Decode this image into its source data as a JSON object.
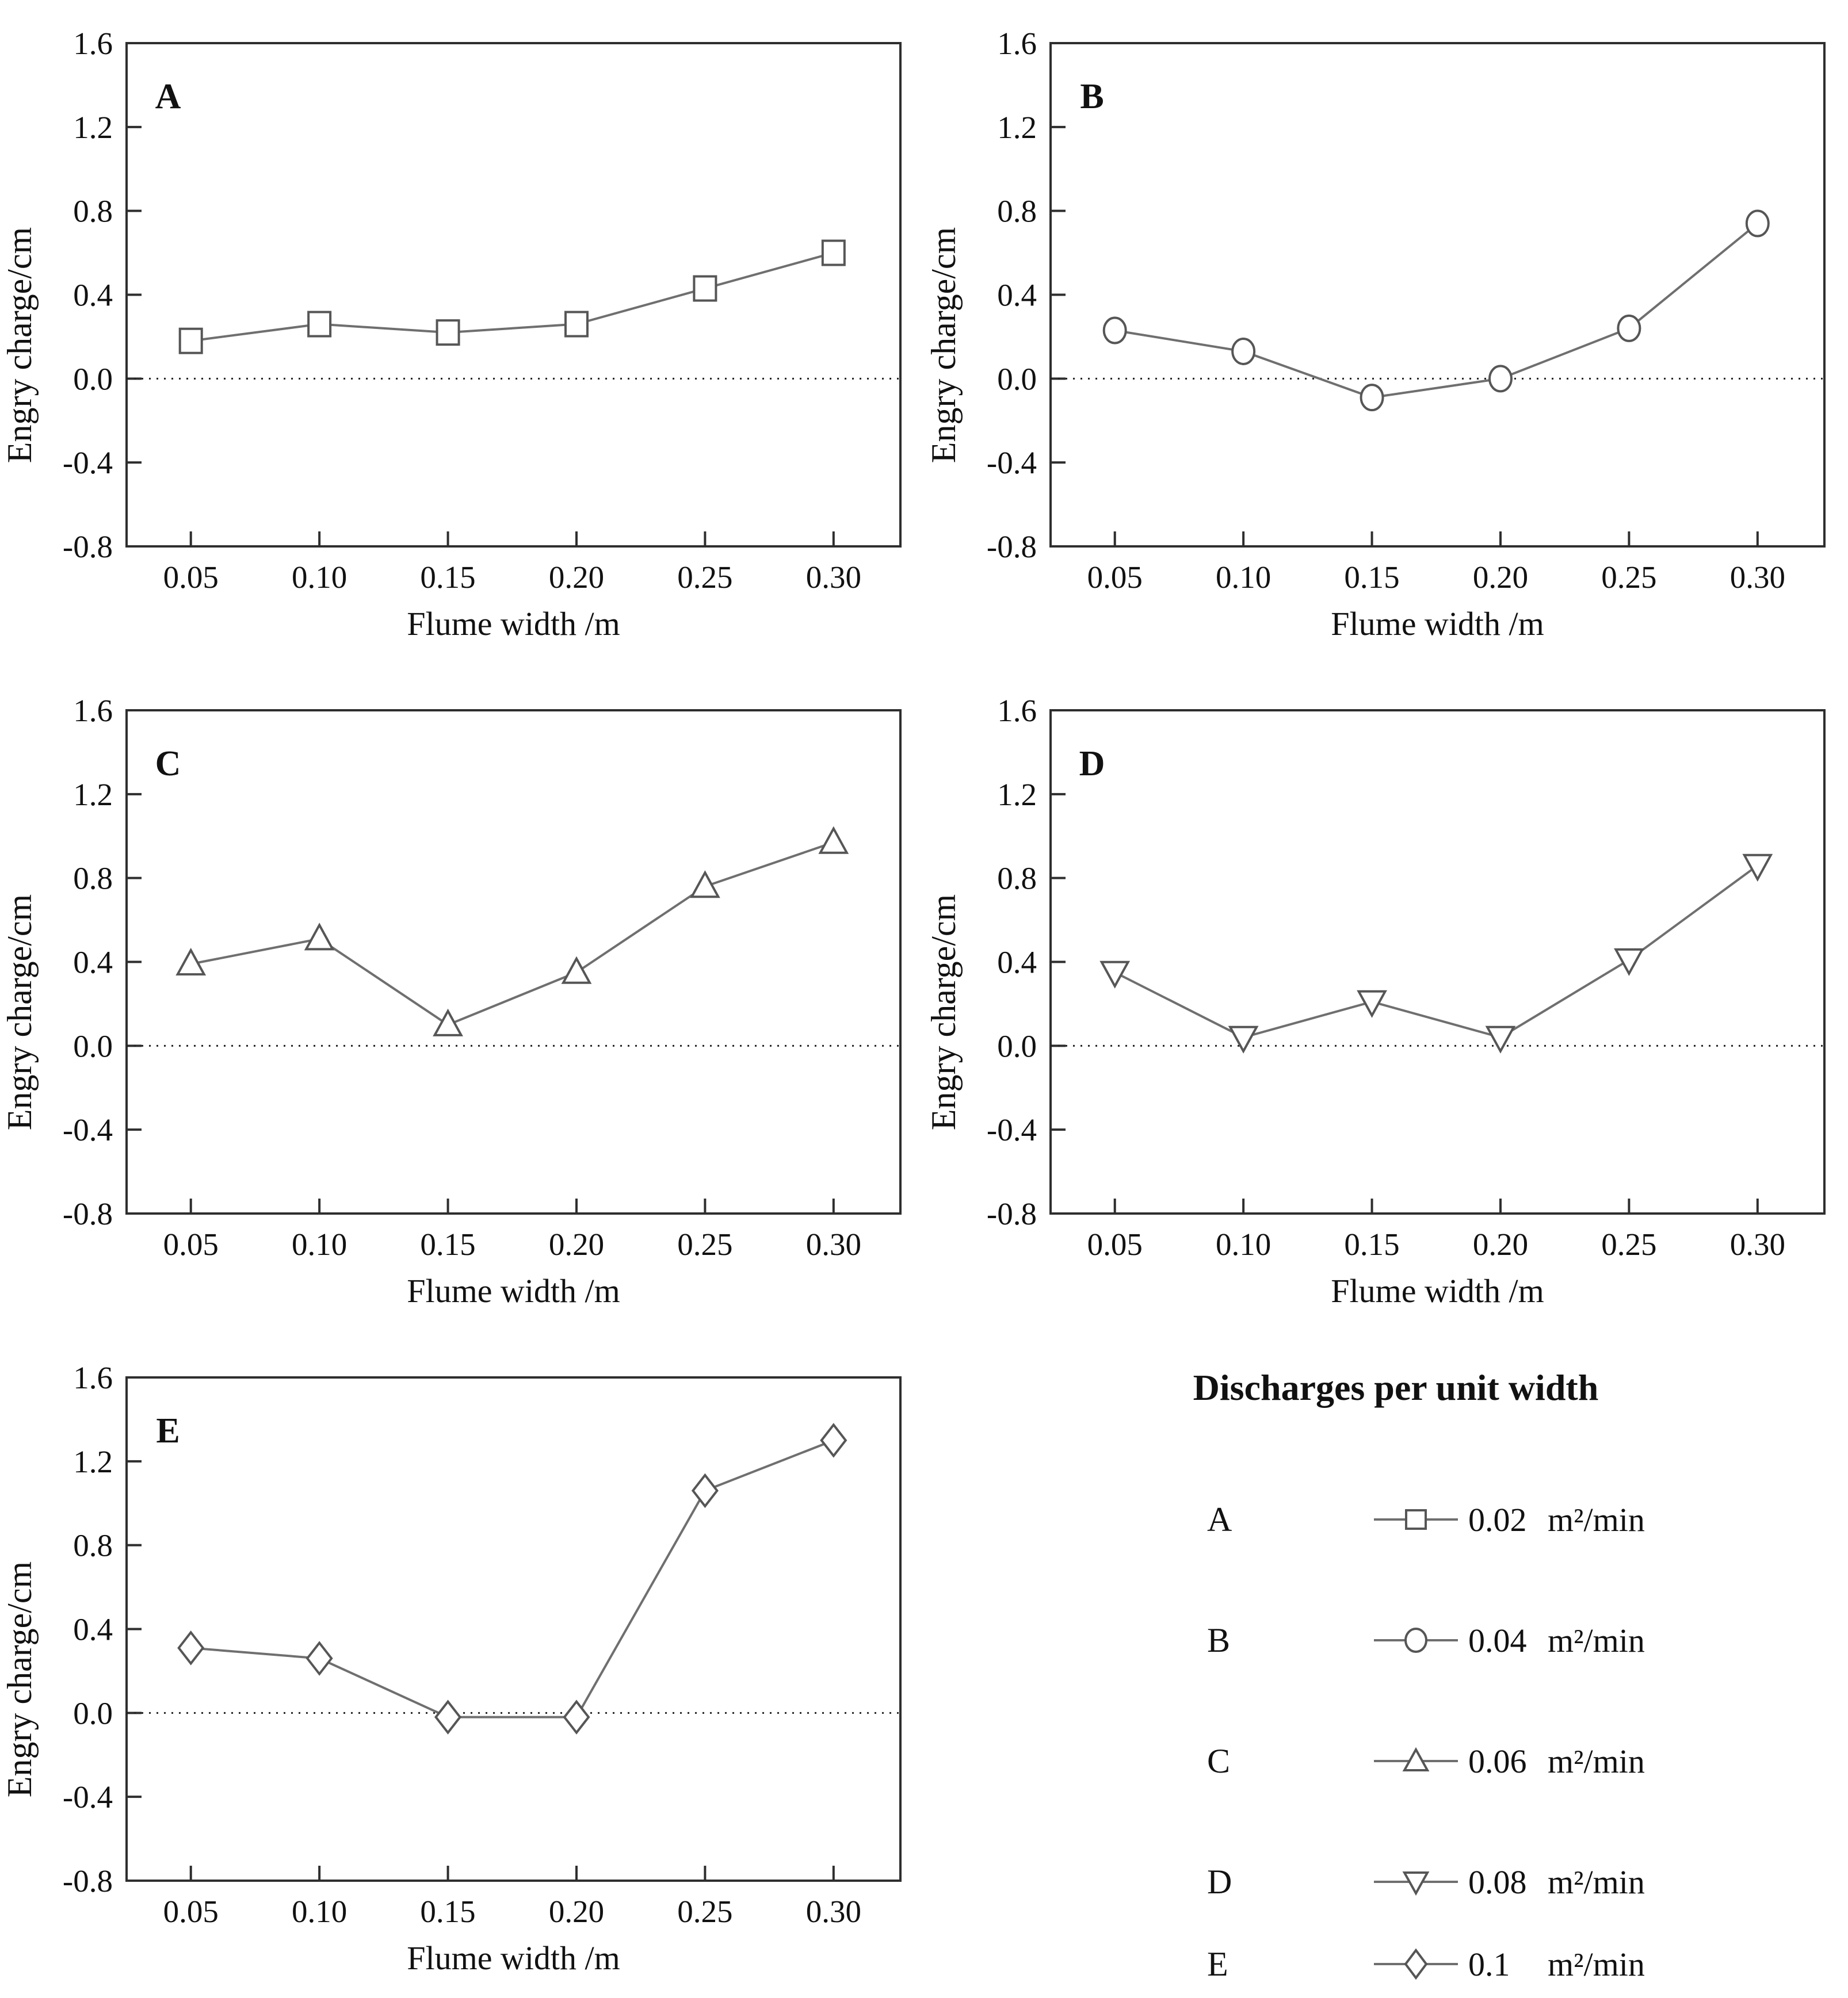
{
  "colors": {
    "background": "#ffffff",
    "axis": "#2e2e2e",
    "line": "#6f6f6f",
    "marker_stroke": "#565656",
    "marker_fill": "#ffffff",
    "zero_line": "#222222",
    "text": "#111111"
  },
  "axes": {
    "xlabel": "Flume width /m",
    "ylabel": "Engry charge/cm",
    "xticks": [
      0.05,
      0.1,
      0.15,
      0.2,
      0.25,
      0.3
    ],
    "xtick_labels": [
      "0.05",
      "0.10",
      "0.15",
      "0.20",
      "0.25",
      "0.30"
    ],
    "yticks": [
      -0.8,
      -0.4,
      0.0,
      0.4,
      0.8,
      1.2,
      1.6
    ],
    "ytick_labels": [
      "-0.8",
      "-0.4",
      "0.0",
      "0.4",
      "0.8",
      "1.2",
      "1.6"
    ],
    "xlim": [
      0.025,
      0.326
    ],
    "ylim": [
      -0.8,
      1.6
    ],
    "zero_line": true,
    "grid": false
  },
  "chart_data": [
    {
      "type": "line",
      "panel": "A",
      "marker": "square",
      "series_name": "0.02 m²/min",
      "x": [
        0.05,
        0.1,
        0.15,
        0.2,
        0.25,
        0.3
      ],
      "y": [
        0.18,
        0.26,
        0.22,
        0.26,
        0.43,
        0.6
      ],
      "xlabel": "Flume width /m",
      "ylabel": "Engry charge/cm",
      "ylim": [
        -0.8,
        1.6
      ]
    },
    {
      "type": "line",
      "panel": "B",
      "marker": "circle",
      "series_name": "0.04 m²/min",
      "x": [
        0.05,
        0.1,
        0.15,
        0.2,
        0.25,
        0.3
      ],
      "y": [
        0.23,
        0.13,
        -0.09,
        0.0,
        0.24,
        0.74
      ],
      "xlabel": "Flume width /m",
      "ylabel": "Engry charge/cm",
      "ylim": [
        -0.8,
        1.6
      ]
    },
    {
      "type": "line",
      "panel": "C",
      "marker": "triangle-up",
      "series_name": "0.06 m²/min",
      "x": [
        0.05,
        0.1,
        0.15,
        0.2,
        0.25,
        0.3
      ],
      "y": [
        0.39,
        0.51,
        0.1,
        0.35,
        0.76,
        0.97
      ],
      "xlabel": "Flume width /m",
      "ylabel": "Engry charge/cm",
      "ylim": [
        -0.8,
        1.6
      ]
    },
    {
      "type": "line",
      "panel": "D",
      "marker": "triangle-down",
      "series_name": "0.08 m²/min",
      "x": [
        0.05,
        0.1,
        0.15,
        0.2,
        0.25,
        0.3
      ],
      "y": [
        0.35,
        0.04,
        0.21,
        0.04,
        0.41,
        0.86
      ],
      "xlabel": "Flume width /m",
      "ylabel": "Engry charge/cm",
      "ylim": [
        -0.8,
        1.6
      ]
    },
    {
      "type": "line",
      "panel": "E",
      "marker": "diamond",
      "series_name": "0.1 m²/min",
      "x": [
        0.05,
        0.1,
        0.15,
        0.2,
        0.25,
        0.3
      ],
      "y": [
        0.31,
        0.26,
        -0.02,
        -0.02,
        1.06,
        1.3
      ],
      "xlabel": "Flume width /m",
      "ylabel": "Engry charge/cm",
      "ylim": [
        -0.8,
        1.6
      ]
    }
  ],
  "legend": {
    "title": "Discharges per unit width",
    "items": [
      {
        "letter": "A",
        "marker": "square",
        "value": "0.02",
        "unit": "m²/min"
      },
      {
        "letter": "B",
        "marker": "circle",
        "value": "0.04",
        "unit": "m²/min"
      },
      {
        "letter": "C",
        "marker": "triangle-up",
        "value": "0.06",
        "unit": "m²/min"
      },
      {
        "letter": "D",
        "marker": "triangle-down",
        "value": "0.08",
        "unit": "m²/min"
      },
      {
        "letter": "E",
        "marker": "diamond",
        "value": "0.1",
        "unit": "m²/min"
      }
    ]
  }
}
